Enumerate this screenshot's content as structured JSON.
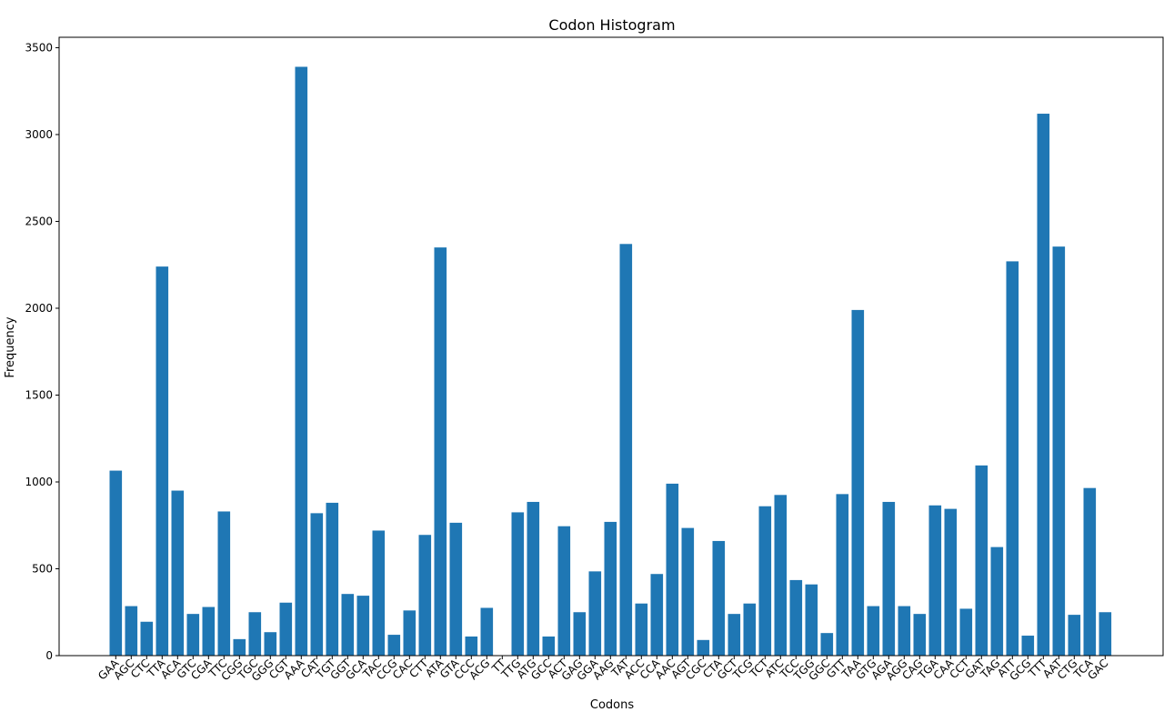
{
  "chart_data": {
    "type": "bar",
    "title": "Codon Histogram",
    "xlabel": "Codons",
    "ylabel": "Frequency",
    "ylim": [
      0,
      3560
    ],
    "yticks": [
      0,
      500,
      1000,
      1500,
      2000,
      2500,
      3000,
      3500
    ],
    "grid": false,
    "color": "#1f77b4",
    "categories": [
      "GAA",
      "AGC",
      "CTC",
      "TTA",
      "ACA",
      "GTC",
      "CGA",
      "TTC",
      "CGG",
      "TGC",
      "GGG",
      "CGT",
      "AAA",
      "CAT",
      "TGT",
      "GGT",
      "GCA",
      "TAC",
      "CCG",
      "CAC",
      "CTT",
      "ATA",
      "GTA",
      "CCC",
      "ACG",
      "TT",
      "TTG",
      "ATG",
      "GCC",
      "ACT",
      "GAG",
      "GGA",
      "AAG",
      "TAT",
      "ACC",
      "CCA",
      "AAC",
      "AGT",
      "CGC",
      "CTA",
      "GCT",
      "TCG",
      "TCT",
      "ATC",
      "TCC",
      "TGG",
      "GGC",
      "GTT",
      "TAA",
      "GTG",
      "AGA",
      "AGG",
      "CAG",
      "TGA",
      "CAA",
      "CCT",
      "GAT",
      "TAG",
      "ATT",
      "GCG",
      "TTT",
      "AAT",
      "CTG",
      "TCA",
      "GAC"
    ],
    "values": [
      1065,
      285,
      195,
      2240,
      950,
      240,
      280,
      830,
      95,
      250,
      135,
      305,
      3390,
      820,
      880,
      355,
      345,
      720,
      120,
      260,
      695,
      2350,
      765,
      110,
      275,
      0,
      825,
      885,
      110,
      745,
      250,
      485,
      770,
      2370,
      300,
      470,
      990,
      735,
      90,
      660,
      240,
      300,
      860,
      925,
      435,
      410,
      130,
      930,
      1990,
      285,
      885,
      285,
      240,
      865,
      845,
      270,
      1095,
      625,
      2270,
      115,
      3120,
      2355,
      235,
      965,
      250
    ]
  }
}
